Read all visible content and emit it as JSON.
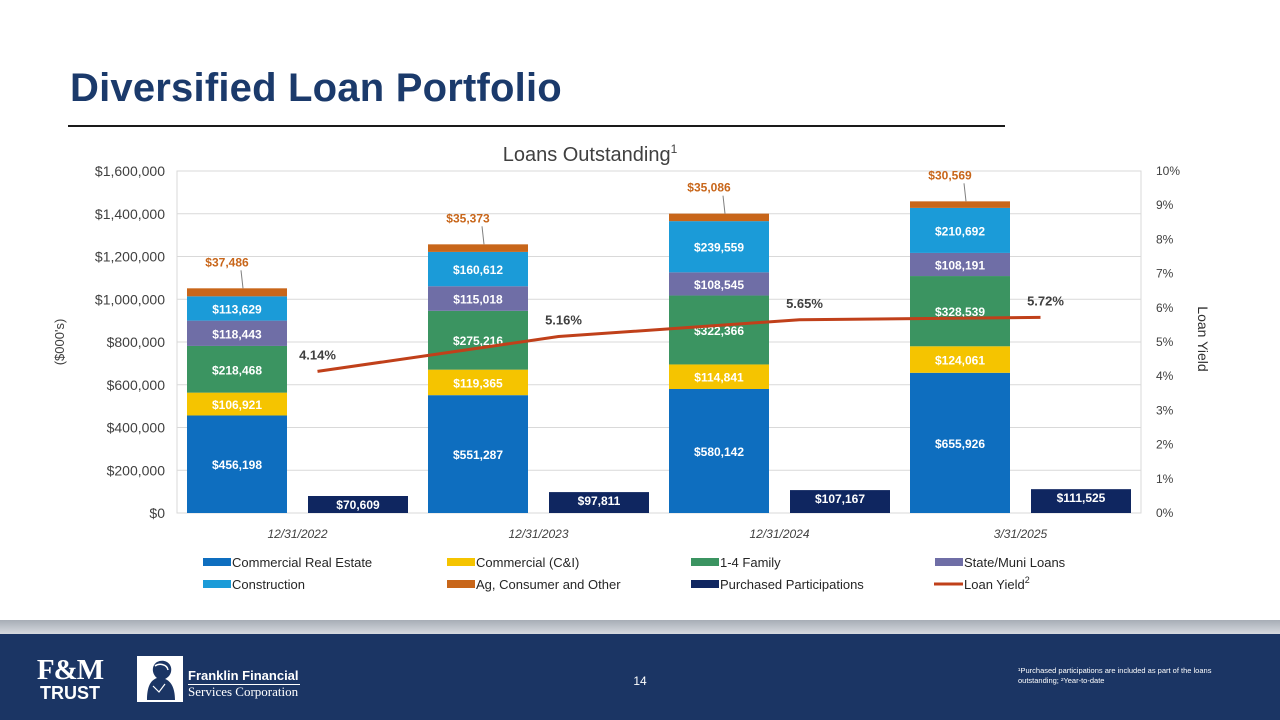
{
  "slide": {
    "title": "Diversified Loan Portfolio",
    "page_number": "14",
    "footnote": "¹Purchased participations are included as part of the loans outstanding; ²Year-to-date"
  },
  "branding": {
    "fm_logo_line1": "F&M",
    "fm_logo_line2": "TRUST",
    "company_name_line1": "Franklin Financial",
    "company_name_line2": "Services Corporation"
  },
  "colors": {
    "title": "#1b3a6b",
    "footer": "#1b3564",
    "Commercial Real Estate": "#0e6ebf",
    "Commercial (C&I)": "#f5c400",
    "1-4 Family": "#3b9461",
    "State/Muni Loans": "#6f6ea6",
    "Construction": "#1b9bd8",
    "Ag, Consumer and Other": "#c8661a",
    "Purchased Participations": "#0f2660",
    "Loan Yield": "#c0401a",
    "top_label": "#c8661a"
  },
  "chart_data": {
    "type": "bar",
    "title": "Loans Outstanding",
    "title_superscript": "1",
    "categories": [
      "12/31/2022",
      "12/31/2023",
      "12/31/2024",
      "3/31/2025"
    ],
    "stacked_series": [
      {
        "name": "Commercial Real Estate",
        "values": [
          456198,
          551287,
          580142,
          655926
        ],
        "labels": [
          "$456,198",
          "$551,287",
          "$580,142",
          "$655,926"
        ]
      },
      {
        "name": "Commercial (C&I)",
        "values": [
          106921,
          119365,
          114841,
          124061
        ],
        "labels": [
          "$106,921",
          "$119,365",
          "$114,841",
          "$124,061"
        ]
      },
      {
        "name": "1-4 Family",
        "values": [
          218468,
          275216,
          322366,
          328539
        ],
        "labels": [
          "$218,468",
          "$275,216",
          "$322,366",
          "$328,539"
        ]
      },
      {
        "name": "State/Muni Loans",
        "values": [
          118443,
          115018,
          108545,
          108191
        ],
        "labels": [
          "$118,443",
          "$115,018",
          "$108,545",
          "$108,191"
        ]
      },
      {
        "name": "Construction",
        "values": [
          113629,
          160612,
          239559,
          210692
        ],
        "labels": [
          "$113,629",
          "$160,612",
          "$239,559",
          "$210,692"
        ]
      },
      {
        "name": "Ag, Consumer and Other",
        "values": [
          37486,
          35373,
          35086,
          30569
        ],
        "labels": [
          "$37,486",
          "$35,373",
          "$35,086",
          "$30,569"
        ]
      }
    ],
    "side_series": {
      "name": "Purchased Participations",
      "values": [
        70609,
        97811,
        107167,
        111525
      ],
      "labels": [
        "$70,609",
        "$97,811",
        "$107,167",
        "$111,525"
      ]
    },
    "line_series": {
      "name": "Loan Yield",
      "superscript": "2",
      "values": [
        4.14,
        5.16,
        5.65,
        5.72
      ],
      "labels": [
        "4.14%",
        "5.16%",
        "5.65%",
        "5.72%"
      ]
    },
    "y_left": {
      "label": "($000's)",
      "min": 0,
      "max": 1600000,
      "ticks": [
        "$0",
        "$200,000",
        "$400,000",
        "$600,000",
        "$800,000",
        "$1,000,000",
        "$1,200,000",
        "$1,400,000",
        "$1,600,000"
      ]
    },
    "y_right": {
      "label": "Loan Yield",
      "min": 0,
      "max": 10,
      "ticks": [
        "0%",
        "1%",
        "2%",
        "3%",
        "4%",
        "5%",
        "6%",
        "7%",
        "8%",
        "9%",
        "10%"
      ]
    },
    "grid": true,
    "legend": {
      "placement": "bottom",
      "entries": [
        "Commercial Real Estate",
        "Commercial (C&I)",
        "1-4 Family",
        "State/Muni Loans",
        "Construction",
        "Ag, Consumer and Other",
        "Purchased Participations",
        "Loan Yield"
      ]
    }
  }
}
